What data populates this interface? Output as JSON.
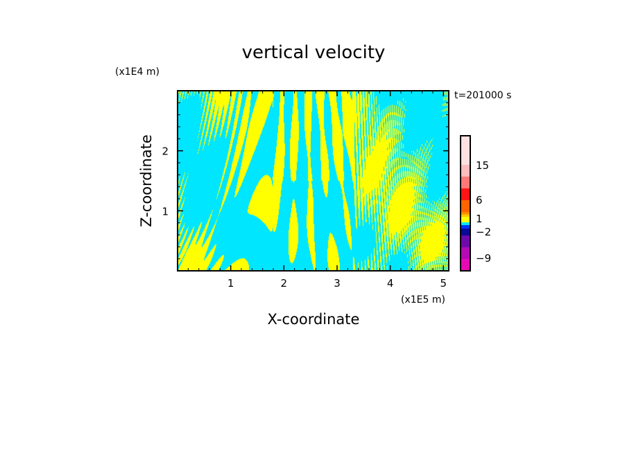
{
  "chart_data": {
    "type": "heatmap",
    "title": "vertical velocity",
    "xlabel": "X-coordinate",
    "ylabel": "Z-coordinate",
    "x_unit": "(x1E5 m)",
    "y_unit": "(x1E4 m)",
    "time_label": "t=201000 s",
    "xlim": [
      0,
      5.1
    ],
    "ylim": [
      0,
      3.0
    ],
    "x_ticks": [
      "1",
      "2",
      "3",
      "4",
      "5"
    ],
    "x_tick_values": [
      1,
      2,
      3,
      4,
      5
    ],
    "y_ticks": [
      "1",
      "2"
    ],
    "y_tick_values": [
      1,
      2
    ],
    "colorbar": {
      "tick_labels": [
        "15",
        "6",
        "1",
        "-2",
        "-9"
      ],
      "colors_top_to_bottom": [
        "#ffe0e0",
        "#ffbcbc",
        "#ff7878",
        "#ff1414",
        "#ff6400",
        "#ff8c00",
        "#ffc800",
        "#ffff00",
        "#ffff00",
        "#00e6ff",
        "#0032ff",
        "#0a0a96",
        "#6e0aaa",
        "#b40ab4",
        "#e60ab4"
      ]
    },
    "field_colors": {
      "positive": "#ffff00",
      "negative": "#00e6ff"
    }
  }
}
